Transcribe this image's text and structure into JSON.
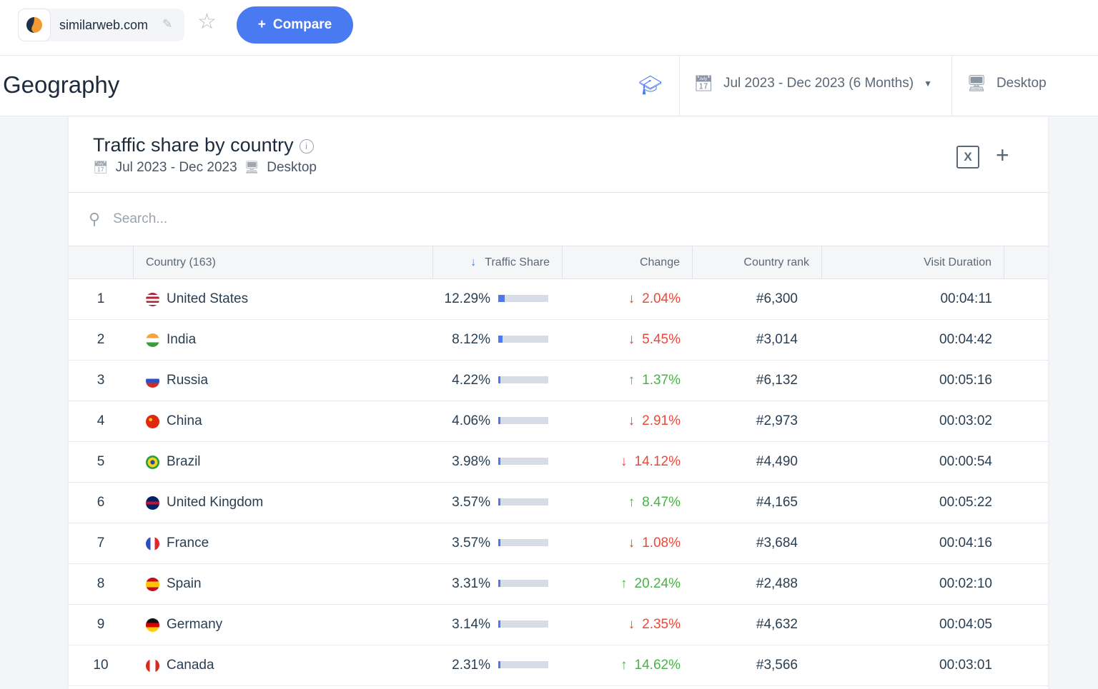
{
  "top": {
    "site": "similarweb.com",
    "compare": "Compare"
  },
  "geo": {
    "title": "Geography",
    "date_range": "Jul 2023 - Dec 2023 (6 Months)",
    "device": "Desktop"
  },
  "card": {
    "title": "Traffic share by country",
    "date": "Jul 2023 - Dec 2023",
    "device": "Desktop",
    "search_placeholder": "Search..."
  },
  "columns": {
    "country": "Country (163)",
    "share": "Traffic Share",
    "change": "Change",
    "rank": "Country rank",
    "duration": "Visit Duration"
  },
  "colors": {
    "accent": "#4a7af2",
    "down": "#e8493b",
    "up": "#48b345"
  },
  "rows": [
    {
      "n": "1",
      "country": "United States",
      "share": "12.29%",
      "share_value": 12.29,
      "dir": "down",
      "change": "2.04%",
      "rank": "#6,300",
      "dur": "00:04:11",
      "flag": "linear-gradient(#b22234 0 15%,#fff 15% 30%,#b22234 30% 45%,#fff 45% 60%,#b22234 60% 75%,#fff 75% 90%,#b22234 90%)"
    },
    {
      "n": "2",
      "country": "India",
      "share": "8.12%",
      "share_value": 8.12,
      "dir": "down",
      "change": "5.45%",
      "rank": "#3,014",
      "dur": "00:04:42",
      "flag": "linear-gradient(#f5a33a 0 33%,#fff 33% 66%,#3d9b3d 66%)"
    },
    {
      "n": "3",
      "country": "Russia",
      "share": "4.22%",
      "share_value": 4.22,
      "dir": "up",
      "change": "1.37%",
      "rank": "#6,132",
      "dur": "00:05:16",
      "flag": "linear-gradient(#fff 0 33%,#2f4fc8 33% 66%,#d52b1e 66%)"
    },
    {
      "n": "4",
      "country": "China",
      "share": "4.06%",
      "share_value": 4.06,
      "dir": "down",
      "change": "2.91%",
      "rank": "#2,973",
      "dur": "00:03:02",
      "flag": "radial-gradient(circle at 35% 35%,#ffd200 12%,#de2910 14%)"
    },
    {
      "n": "5",
      "country": "Brazil",
      "share": "3.98%",
      "share_value": 3.98,
      "dir": "down",
      "change": "14.12%",
      "rank": "#4,490",
      "dur": "00:00:54",
      "flag": "radial-gradient(circle,#2a4a9c 22%,#f7d117 24% 50%,#2c9b3a 52%)"
    },
    {
      "n": "6",
      "country": "United Kingdom",
      "share": "3.57%",
      "share_value": 3.57,
      "dir": "up",
      "change": "8.47%",
      "rank": "#4,165",
      "dur": "00:05:22",
      "flag": "linear-gradient(#012169 0 40%,#c8102e 40% 60%,#012169 60%)"
    },
    {
      "n": "7",
      "country": "France",
      "share": "3.57%",
      "share_value": 3.57,
      "dir": "down",
      "change": "1.08%",
      "rank": "#3,684",
      "dur": "00:04:16",
      "flag": "linear-gradient(90deg,#2a4dbf 0 33%,#fff 33% 66%,#e1252d 66%)"
    },
    {
      "n": "8",
      "country": "Spain",
      "share": "3.31%",
      "share_value": 3.31,
      "dir": "up",
      "change": "20.24%",
      "rank": "#2,488",
      "dur": "00:02:10",
      "flag": "linear-gradient(#c60b1e 0 28%,#ffc400 28% 72%,#c60b1e 72%)"
    },
    {
      "n": "9",
      "country": "Germany",
      "share": "3.14%",
      "share_value": 3.14,
      "dir": "down",
      "change": "2.35%",
      "rank": "#4,632",
      "dur": "00:04:05",
      "flag": "linear-gradient(#111 0 33%,#dd0000 33% 66%,#ffce00 66%)"
    },
    {
      "n": "10",
      "country": "Canada",
      "share": "2.31%",
      "share_value": 2.31,
      "dir": "up",
      "change": "14.62%",
      "rank": "#3,566",
      "dur": "00:03:01",
      "flag": "linear-gradient(90deg,#d52b1e 0 28%,#fff 28% 72%,#d52b1e 72%)"
    }
  ]
}
